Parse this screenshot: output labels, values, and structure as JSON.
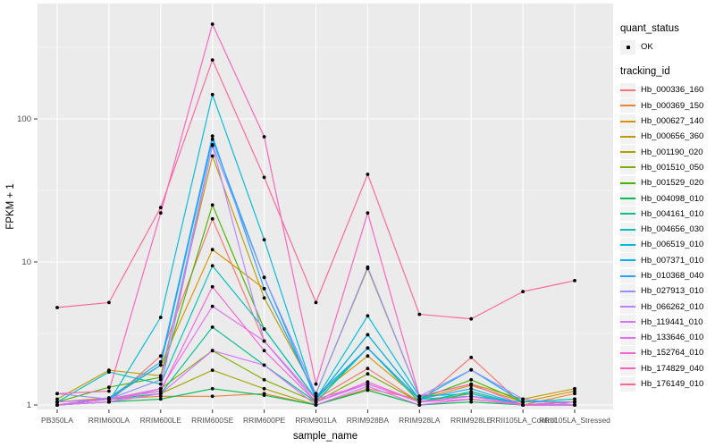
{
  "chart_data": {
    "type": "line",
    "title": "",
    "xlabel": "sample_name",
    "ylabel": "FPKM + 1",
    "y_scale": "log10",
    "y_ticks": [
      1,
      10,
      100
    ],
    "y_minor_ticks": [
      3.162,
      31.62,
      316.2
    ],
    "ylim": [
      1,
      500
    ],
    "grid": true,
    "panel_bg": "#EBEBEB",
    "grid_color": "#FFFFFF",
    "point_color": "#000000",
    "x_categories": [
      "PB350LA",
      "RRIM600LA",
      "RRIM600LE",
      "RRIM600SE",
      "RRIM600PE",
      "RRIM901LA",
      "RRIM928BA",
      "RRIM928LA",
      "RRIM928LE",
      "RRII105LA_Control",
      "RRII105LA_Stressed"
    ],
    "series": [
      {
        "name": "Hb_000336_160",
        "color": "#F8766D",
        "values": [
          1.0,
          1.05,
          2.2,
          20,
          2.8,
          1.1,
          1.8,
          1.05,
          2.15,
          1.0,
          1.0
        ]
      },
      {
        "name": "Hb_000369_150",
        "color": "#EB8335",
        "values": [
          1.0,
          1.1,
          1.15,
          1.15,
          1.2,
          1.0,
          1.3,
          1.1,
          1.15,
          1.0,
          1.2
        ]
      },
      {
        "name": "Hb_000627_140",
        "color": "#D99200",
        "values": [
          1.05,
          1.12,
          1.9,
          12.2,
          6.5,
          1.15,
          2.2,
          1.1,
          1.37,
          1.05,
          1.25
        ]
      },
      {
        "name": "Hb_000656_360",
        "color": "#C09B00",
        "values": [
          1.1,
          1.75,
          1.6,
          55,
          5.6,
          1.2,
          9.0,
          1.15,
          1.4,
          1.1,
          1.3
        ]
      },
      {
        "name": "Hb_001190_020",
        "color": "#A5A500",
        "values": [
          1.0,
          1.05,
          1.2,
          1.75,
          1.3,
          1.0,
          1.27,
          1.0,
          1.1,
          1.0,
          1.05
        ]
      },
      {
        "name": "Hb_001510_050",
        "color": "#80AD00",
        "values": [
          1.0,
          1.1,
          1.3,
          2.4,
          1.5,
          1.05,
          1.65,
          1.05,
          1.2,
          1.0,
          1.0
        ]
      },
      {
        "name": "Hb_001529_020",
        "color": "#45B500",
        "values": [
          1.05,
          1.33,
          1.56,
          25,
          3.4,
          1.1,
          3.1,
          1.1,
          1.5,
          1.05,
          1.1
        ]
      },
      {
        "name": "Hb_004098_010",
        "color": "#00BC51",
        "values": [
          1.0,
          1.05,
          1.1,
          1.3,
          1.17,
          1.0,
          1.27,
          1.0,
          1.05,
          1.0,
          1.0
        ]
      },
      {
        "name": "Hb_004161_010",
        "color": "#00C08E",
        "values": [
          1.0,
          1.1,
          1.2,
          3.5,
          1.9,
          1.05,
          2.5,
          1.05,
          1.24,
          1.0,
          1.05
        ]
      },
      {
        "name": "Hb_004656_030",
        "color": "#00C0BB",
        "values": [
          1.05,
          1.7,
          1.4,
          9.4,
          3.4,
          1.1,
          2.5,
          1.1,
          1.15,
          1.05,
          1.1
        ]
      },
      {
        "name": "Hb_006519_010",
        "color": "#00BBDA",
        "values": [
          1.0,
          1.05,
          4.1,
          148,
          14.3,
          1.1,
          4.2,
          1.15,
          1.2,
          1.0,
          1.0
        ]
      },
      {
        "name": "Hb_007371_010",
        "color": "#00B2F3",
        "values": [
          1.05,
          1.1,
          1.9,
          72,
          7.8,
          1.1,
          3.1,
          1.1,
          1.76,
          1.05,
          1.05
        ]
      },
      {
        "name": "Hb_010368_040",
        "color": "#29A3FF",
        "values": [
          1.0,
          1.12,
          2.0,
          76,
          6.5,
          1.15,
          2.5,
          1.1,
          1.3,
          1.0,
          1.05
        ]
      },
      {
        "name": "Hb_027913_010",
        "color": "#9190FF",
        "values": [
          1.2,
          1.1,
          1.5,
          66,
          7.8,
          1.2,
          9.2,
          1.15,
          1.76,
          1.1,
          1.0
        ]
      },
      {
        "name": "Hb_066262_010",
        "color": "#B983FF",
        "values": [
          1.0,
          1.05,
          1.3,
          65,
          2.8,
          1.05,
          1.4,
          1.05,
          1.15,
          1.0,
          1.0
        ]
      },
      {
        "name": "Hb_119441_010",
        "color": "#D575FE",
        "values": [
          1.0,
          1.05,
          1.2,
          2.4,
          1.9,
          1.0,
          1.35,
          1.0,
          1.1,
          1.0,
          1.0
        ]
      },
      {
        "name": "Hb_133646_010",
        "color": "#E86DF0",
        "values": [
          1.05,
          1.1,
          1.3,
          4.9,
          2.8,
          1.1,
          1.4,
          1.05,
          1.15,
          1.0,
          1.0
        ]
      },
      {
        "name": "Hb_152764_010",
        "color": "#F564D8",
        "values": [
          1.0,
          1.1,
          1.25,
          6.7,
          2.4,
          1.05,
          1.45,
          1.05,
          1.1,
          1.0,
          1.05
        ]
      },
      {
        "name": "Hb_174829_040",
        "color": "#FC61BC",
        "values": [
          1.2,
          1.25,
          22,
          460,
          75,
          1.4,
          22,
          1.15,
          1.4,
          1.0,
          1.05
        ]
      },
      {
        "name": "Hb_176149_010",
        "color": "#FF659D",
        "values": [
          4.8,
          5.2,
          24,
          258,
          39,
          5.2,
          41,
          4.3,
          4.0,
          6.2,
          7.4
        ]
      }
    ]
  },
  "legend": {
    "quant_status_title": "quant_status",
    "quant_status_items": [
      {
        "label": "OK",
        "symbol": "point"
      }
    ],
    "tracking_id_title": "tracking_id"
  }
}
